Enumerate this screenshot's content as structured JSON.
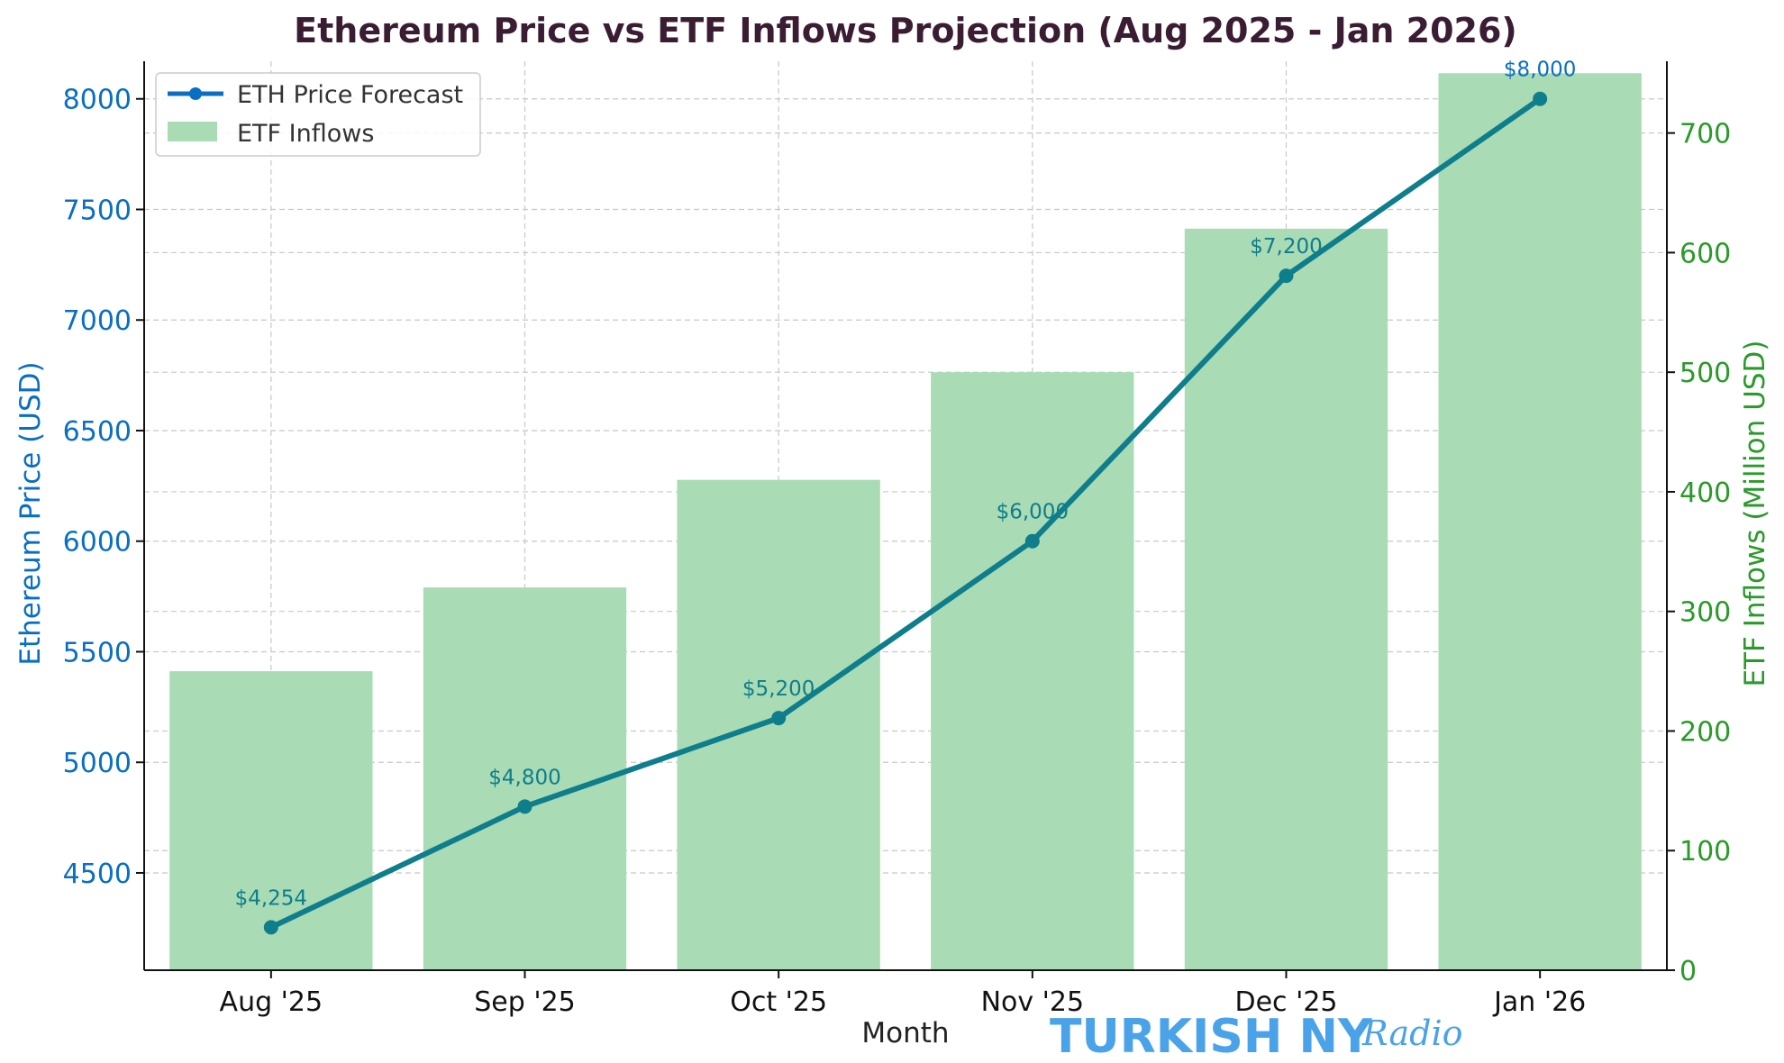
{
  "chart_data": {
    "type": "bar+line",
    "title": "Ethereum Price vs ETF Inflows Projection (Aug 2025 - Jan 2026)",
    "xlabel": "Month",
    "ylabel_left": "Ethereum Price (USD)",
    "ylabel_right": "ETF Inflows (Million USD)",
    "categories": [
      "Aug '25",
      "Sep '25",
      "Oct '25",
      "Nov '25",
      "Dec '25",
      "Jan '26"
    ],
    "ylim_left": [
      4060,
      8170
    ],
    "yticks_left": [
      4500,
      5000,
      5500,
      6000,
      6500,
      7000,
      7500,
      8000
    ],
    "ylim_right": [
      0,
      760
    ],
    "yticks_right": [
      0,
      100,
      200,
      300,
      400,
      500,
      600,
      700
    ],
    "grid": true,
    "legend_position": "top-left",
    "series": [
      {
        "name": "ETH Price Forecast",
        "type": "line",
        "axis": "left",
        "values": [
          4254,
          4800,
          5200,
          6000,
          7200,
          8000
        ],
        "labels": [
          "$4,254",
          "$4,800",
          "$5,200",
          "$6,000",
          "$7,200",
          "$8,000"
        ],
        "color": "#0a6fc2"
      },
      {
        "name": "ETF Inflows",
        "type": "bar",
        "axis": "right",
        "values": [
          250,
          320,
          410,
          500,
          620,
          750
        ],
        "color": "#a9dbb4"
      }
    ],
    "colors": {
      "title": "#3a1c33",
      "left_axis": "#0a6fc2",
      "right_axis": "#2a9a2a",
      "line": "#0a6fc2",
      "line_overlap": "#0e7d8c",
      "bar": "#a9dbb4",
      "grid": "#c8c8c8",
      "point_label": "#0e7d8c"
    }
  },
  "watermark": {
    "text_main": "TURKISH NY",
    "text_script": "Radio",
    "color": "#4aa3e8"
  }
}
